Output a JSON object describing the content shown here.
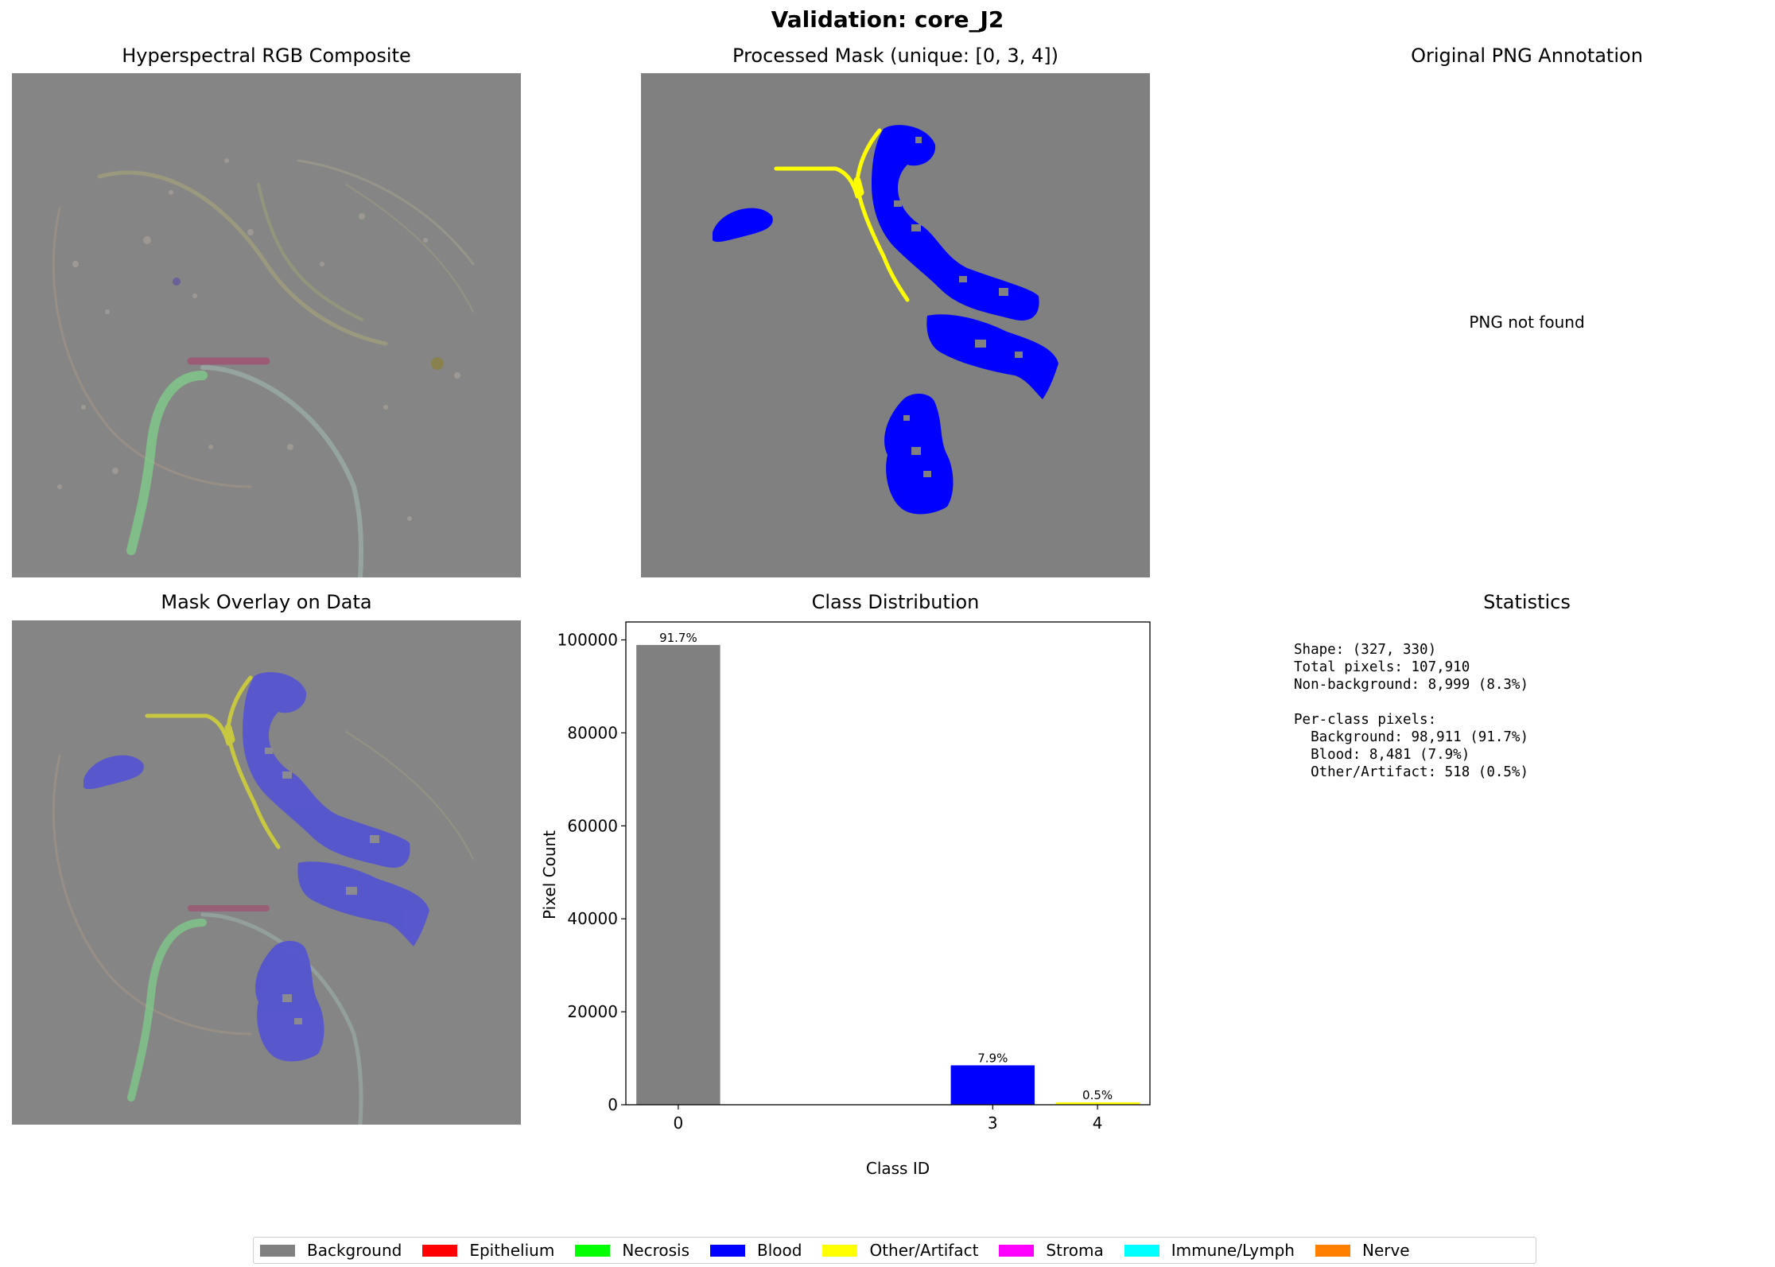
{
  "figure": {
    "suptitle": "Validation: core_J2",
    "panel_titles": {
      "rgb": "Hyperspectral RGB Composite",
      "mask": "Processed Mask (unique: [0, 3, 4])",
      "png": "Original PNG Annotation",
      "overlay": "Mask Overlay on Data",
      "dist": "Class Distribution",
      "stats": "Statistics"
    },
    "png_message": "PNG not found"
  },
  "statistics": {
    "shape": "Shape: (327, 330)",
    "total": "Total pixels: 107,910",
    "nonbg": "Non-background: 8,999 (8.3%)",
    "per_class_header": "Per-class pixels:",
    "bg": "  Background: 98,911 (91.7%)",
    "blood": "  Blood: 8,481 (7.9%)",
    "other": "  Other/Artifact: 518 (0.5%)"
  },
  "colors": {
    "background": "#808080",
    "blood": "#0000ff",
    "artifact": "#ffff00"
  },
  "chart_data": {
    "type": "bar",
    "title": "Class Distribution",
    "xlabel": "Class ID",
    "ylabel": "Pixel Count",
    "x": [
      0,
      3,
      4
    ],
    "values": [
      98911,
      8481,
      518
    ],
    "labels": [
      "91.7%",
      "7.9%",
      "0.5%"
    ],
    "colors": [
      "#808080",
      "#0000ff",
      "#ffff00"
    ],
    "xticks": [
      "0",
      "3",
      "4"
    ],
    "yticks": [
      0,
      20000,
      40000,
      60000,
      80000,
      100000
    ],
    "xlim": [
      -0.5,
      4.5
    ],
    "ylim": [
      0,
      103856
    ]
  },
  "legend": {
    "items": [
      {
        "label": "Background",
        "color": "#808080"
      },
      {
        "label": "Epithelium",
        "color": "#ff0000"
      },
      {
        "label": "Necrosis",
        "color": "#00ff00"
      },
      {
        "label": "Blood",
        "color": "#0000ff"
      },
      {
        "label": "Other/Artifact",
        "color": "#ffff00"
      },
      {
        "label": "Stroma",
        "color": "#ff00ff"
      },
      {
        "label": "Immune/Lymph",
        "color": "#00ffff"
      },
      {
        "label": "Nerve",
        "color": "#ff8000"
      }
    ]
  }
}
